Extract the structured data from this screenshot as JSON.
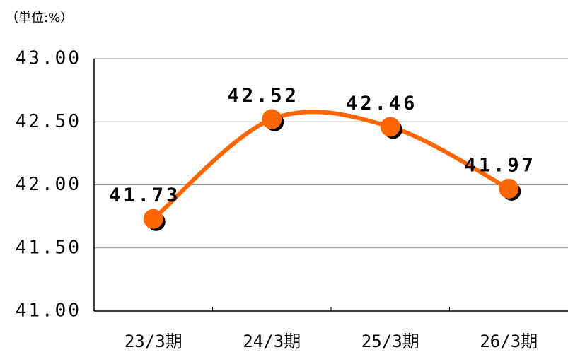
{
  "chart_data": {
    "type": "line",
    "unit_label": "（単位:%）",
    "categories": [
      "23/3期",
      "24/3期",
      "25/3期",
      "26/3期"
    ],
    "values": [
      41.73,
      42.52,
      42.46,
      41.97
    ],
    "color": "#ff6600",
    "ylim": [
      41,
      43
    ],
    "yticks": [
      {
        "value": 41,
        "label": "41.00"
      },
      {
        "value": 41.5,
        "label": "41.50"
      },
      {
        "value": 42,
        "label": "42.00"
      },
      {
        "value": 42.5,
        "label": "42.50"
      },
      {
        "value": 43,
        "label": "43.00"
      }
    ],
    "grid": true
  }
}
